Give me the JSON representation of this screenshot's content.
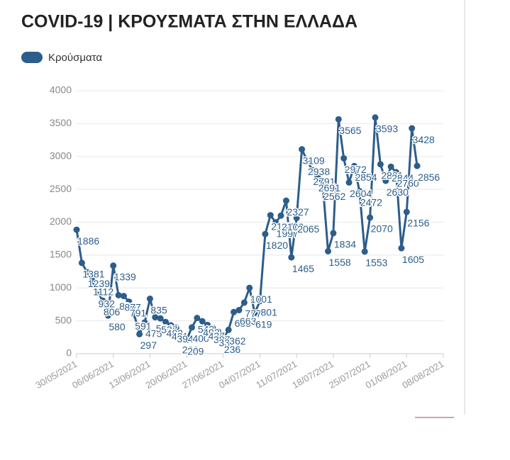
{
  "chart_data": {
    "type": "line",
    "title": "COVID-19 | ΚΡΟΥΣΜΑΤΑ ΣΤΗΝ ΕΛΛΑΔΑ",
    "x": [
      "30/05/2021",
      "31/05/2021",
      "01/06/2021",
      "02/06/2021",
      "03/06/2021",
      "04/06/2021",
      "05/06/2021",
      "06/06/2021",
      "07/06/2021",
      "08/06/2021",
      "09/06/2021",
      "10/06/2021",
      "11/06/2021",
      "12/06/2021",
      "13/06/2021",
      "14/06/2021",
      "15/06/2021",
      "16/06/2021",
      "17/06/2021",
      "18/06/2021",
      "19/06/2021",
      "20/06/2021",
      "21/06/2021",
      "22/06/2021",
      "23/06/2021",
      "24/06/2021",
      "25/06/2021",
      "26/06/2021",
      "27/06/2021",
      "28/06/2021",
      "29/06/2021",
      "30/06/2021",
      "01/07/2021",
      "02/07/2021",
      "03/07/2021",
      "04/07/2021",
      "05/07/2021",
      "06/07/2021",
      "07/07/2021",
      "08/07/2021",
      "09/07/2021",
      "10/07/2021",
      "11/07/2021",
      "12/07/2021",
      "13/07/2021",
      "14/07/2021",
      "15/07/2021",
      "16/07/2021",
      "17/07/2021",
      "18/07/2021",
      "19/07/2021",
      "20/07/2021",
      "21/07/2021",
      "22/07/2021",
      "23/07/2021",
      "24/07/2021",
      "25/07/2021",
      "26/07/2021",
      "27/07/2021",
      "28/07/2021",
      "29/07/2021",
      "30/07/2021",
      "31/07/2021",
      "01/08/2021",
      "02/08/2021",
      "03/08/2021"
    ],
    "series": [
      {
        "name": "Κρούσματα",
        "color": "#2d5d8a",
        "values": [
          1886,
          1381,
          1239,
          1112,
          932,
          806,
          580,
          1339,
          890,
          877,
          791,
          591,
          297,
          475,
          835,
          554,
          537,
          482,
          431,
          394,
          229,
          209,
          400,
          543,
          493,
          437,
          387,
          337,
          236,
          362,
          633,
          663,
          777,
          1001,
          619,
          801,
          1820,
          2107,
          1997,
          2100,
          2327,
          1465,
          2065,
          3109,
          2938,
          2791,
          2691,
          2562,
          1558,
          1834,
          3565,
          2972,
          2604,
          2854,
          2472,
          1553,
          2070,
          3593,
          2881,
          2630,
          2844,
          2760,
          1605,
          2156,
          3428,
          2856
        ]
      }
    ],
    "xlim": [
      "30/05/2021",
      "08/08/2021"
    ],
    "xticks": [
      "30/05/2021",
      "06/06/2021",
      "13/06/2021",
      "20/06/2021",
      "27/06/2021",
      "04/07/2021",
      "11/07/2021",
      "18/07/2021",
      "25/07/2021",
      "01/08/2021",
      "08/08/2021"
    ],
    "ylim": [
      0,
      4000
    ],
    "yticks": [
      0,
      500,
      1000,
      1500,
      2000,
      2500,
      3000,
      3500,
      4000
    ],
    "grid": true
  }
}
